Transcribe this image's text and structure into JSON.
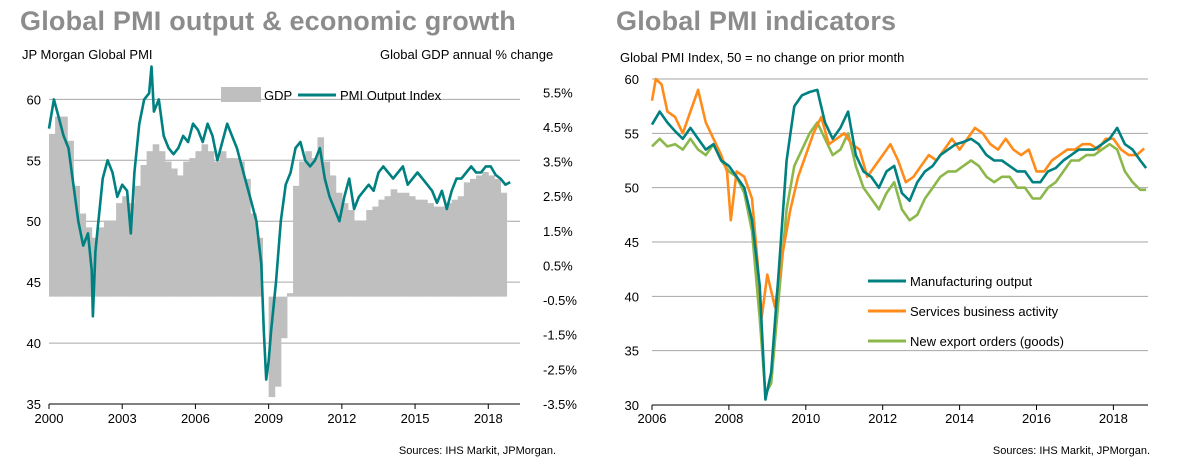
{
  "left_panel": {
    "title": "Global PMI output & economic growth",
    "left_axis_label": "JP Morgan Global PMI",
    "right_axis_label": "Global GDP annual % change",
    "source": "Sources: IHS Markit, JPMorgan."
  },
  "right_panel": {
    "title": "Global PMI indicators",
    "subtitle": "Global PMI Index, 50 = no change on prior month",
    "source": "Sources: IHS Markit, JPMorgan."
  },
  "chart_data": [
    {
      "type": "bar+line",
      "title": "Global PMI output & economic growth",
      "ylabel": "JP Morgan Global PMI",
      "y2label": "Global GDP annual % change",
      "ylim": [
        35,
        62
      ],
      "y2lim": [
        -3.5,
        6.0
      ],
      "yticks": [
        35,
        40,
        45,
        50,
        55,
        60
      ],
      "y2ticks": [
        -3.5,
        -2.5,
        -1.5,
        -0.5,
        0.5,
        1.5,
        2.5,
        3.5,
        4.5,
        5.5
      ],
      "y2tick_labels": [
        "-3.5%",
        "-2.5%",
        "-1.5%",
        "-0.5%",
        "0.5%",
        "1.5%",
        "2.5%",
        "3.5%",
        "4.5%",
        "5.5%"
      ],
      "xlim": [
        2000,
        2019.3
      ],
      "xticks": [
        2000,
        2003,
        2006,
        2009,
        2012,
        2015,
        2018
      ],
      "grid": "horizontal",
      "legend": "top-right",
      "series": [
        {
          "name": "GDP",
          "kind": "bar",
          "color": "#bfbfbf",
          "axis": "right",
          "x": [
            2000.0,
            2000.25,
            2000.5,
            2000.75,
            2001.0,
            2001.25,
            2001.5,
            2001.75,
            2002.0,
            2002.25,
            2002.5,
            2002.75,
            2003.0,
            2003.25,
            2003.5,
            2003.75,
            2004.0,
            2004.25,
            2004.5,
            2004.75,
            2005.0,
            2005.25,
            2005.5,
            2005.75,
            2006.0,
            2006.25,
            2006.5,
            2006.75,
            2007.0,
            2007.25,
            2007.5,
            2007.75,
            2008.0,
            2008.25,
            2008.5,
            2008.75,
            2009.0,
            2009.25,
            2009.5,
            2009.75,
            2010.0,
            2010.25,
            2010.5,
            2010.75,
            2011.0,
            2011.25,
            2011.5,
            2011.75,
            2012.0,
            2012.25,
            2012.5,
            2012.75,
            2013.0,
            2013.25,
            2013.5,
            2013.75,
            2014.0,
            2014.25,
            2014.5,
            2014.75,
            2015.0,
            2015.25,
            2015.5,
            2015.75,
            2016.0,
            2016.25,
            2016.5,
            2016.75,
            2017.0,
            2017.25,
            2017.5,
            2017.75,
            2018.0,
            2018.25,
            2018.5
          ],
          "values": [
            4.3,
            4.8,
            4.8,
            4.1,
            2.8,
            2.0,
            1.6,
            1.3,
            1.6,
            1.8,
            1.8,
            2.3,
            2.5,
            2.3,
            2.8,
            3.4,
            3.8,
            4.0,
            3.8,
            3.5,
            3.3,
            3.1,
            3.5,
            3.6,
            3.8,
            4.0,
            3.8,
            3.5,
            3.8,
            3.6,
            3.6,
            3.5,
            3.0,
            2.0,
            1.3,
            -0.4,
            -3.3,
            -3.0,
            -1.6,
            -0.3,
            2.8,
            3.5,
            3.8,
            3.6,
            4.2,
            3.5,
            3.1,
            2.6,
            2.3,
            2.1,
            1.8,
            1.8,
            2.1,
            2.2,
            2.4,
            2.5,
            2.7,
            2.6,
            2.6,
            2.5,
            2.4,
            2.4,
            2.3,
            2.2,
            2.2,
            2.3,
            2.4,
            2.5,
            2.9,
            3.0,
            3.1,
            3.2,
            3.1,
            3.0,
            2.6
          ]
        },
        {
          "name": "PMI Output Index",
          "kind": "line",
          "color": "#008080",
          "axis": "left",
          "x": [
            2000.0,
            2000.2,
            2000.4,
            2000.6,
            2000.8,
            2001.0,
            2001.2,
            2001.4,
            2001.6,
            2001.75,
            2001.8,
            2001.9,
            2002.0,
            2002.2,
            2002.4,
            2002.6,
            2002.8,
            2003.0,
            2003.2,
            2003.35,
            2003.5,
            2003.7,
            2003.9,
            2004.1,
            2004.2,
            2004.3,
            2004.5,
            2004.7,
            2004.9,
            2005.1,
            2005.3,
            2005.5,
            2005.7,
            2005.9,
            2006.1,
            2006.3,
            2006.5,
            2006.7,
            2006.9,
            2007.1,
            2007.3,
            2007.5,
            2007.7,
            2007.9,
            2008.1,
            2008.3,
            2008.5,
            2008.7,
            2008.8,
            2008.9,
            2009.0,
            2009.1,
            2009.3,
            2009.5,
            2009.7,
            2009.9,
            2010.1,
            2010.3,
            2010.5,
            2010.7,
            2010.9,
            2011.1,
            2011.3,
            2011.5,
            2011.7,
            2011.9,
            2012.1,
            2012.3,
            2012.5,
            2012.7,
            2012.9,
            2013.1,
            2013.3,
            2013.5,
            2013.7,
            2013.9,
            2014.1,
            2014.3,
            2014.5,
            2014.7,
            2014.9,
            2015.1,
            2015.3,
            2015.5,
            2015.7,
            2015.9,
            2016.1,
            2016.3,
            2016.5,
            2016.7,
            2016.9,
            2017.1,
            2017.3,
            2017.5,
            2017.7,
            2017.9,
            2018.1,
            2018.3,
            2018.5,
            2018.7,
            2018.9
          ],
          "values": [
            57.6,
            60.0,
            58.5,
            57.0,
            56.0,
            53.0,
            50.0,
            48.0,
            49.0,
            46.0,
            42.2,
            47.5,
            49.5,
            53.5,
            55.0,
            54.0,
            52.0,
            53.0,
            52.5,
            49.0,
            54.0,
            58.0,
            60.0,
            60.5,
            62.7,
            59.0,
            60.0,
            57.0,
            56.0,
            55.5,
            56.0,
            57.0,
            56.5,
            58.0,
            57.5,
            56.5,
            58.0,
            57.0,
            55.0,
            56.5,
            58.0,
            57.0,
            56.0,
            54.5,
            53.0,
            51.5,
            50.0,
            46.5,
            41.0,
            37.0,
            38.5,
            41.0,
            45.0,
            50.0,
            53.0,
            54.0,
            56.0,
            56.5,
            55.0,
            54.5,
            55.0,
            56.0,
            53.5,
            52.0,
            51.0,
            50.0,
            52.0,
            53.5,
            51.0,
            52.0,
            52.5,
            53.0,
            52.5,
            54.0,
            54.5,
            54.0,
            53.5,
            54.0,
            54.5,
            53.0,
            53.5,
            54.0,
            53.5,
            53.0,
            52.5,
            51.5,
            52.5,
            51.0,
            52.5,
            53.5,
            53.5,
            54.0,
            54.5,
            54.0,
            54.0,
            54.5,
            54.5,
            53.8,
            53.5,
            53.0,
            53.2
          ]
        }
      ]
    },
    {
      "type": "line",
      "title": "Global PMI indicators",
      "ylabel": "Global PMI Index, 50 = no change on prior month",
      "ylim": [
        30,
        60
      ],
      "yticks": [
        30,
        35,
        40,
        45,
        50,
        55,
        60
      ],
      "xlim": [
        2006,
        2018.9
      ],
      "xticks": [
        2006,
        2008,
        2010,
        2012,
        2014,
        2016,
        2018
      ],
      "grid": "horizontal",
      "legend": "bottom-right",
      "series": [
        {
          "name": "Manufacturing output",
          "color": "#008080",
          "x": [
            2006.0,
            2006.2,
            2006.4,
            2006.6,
            2006.8,
            2007.0,
            2007.2,
            2007.4,
            2007.6,
            2007.8,
            2008.0,
            2008.2,
            2008.4,
            2008.6,
            2008.8,
            2008.95,
            2009.1,
            2009.3,
            2009.5,
            2009.7,
            2009.9,
            2010.1,
            2010.3,
            2010.5,
            2010.7,
            2010.9,
            2011.1,
            2011.3,
            2011.5,
            2011.7,
            2011.9,
            2012.1,
            2012.3,
            2012.5,
            2012.7,
            2012.9,
            2013.1,
            2013.3,
            2013.5,
            2013.7,
            2013.9,
            2014.1,
            2014.3,
            2014.5,
            2014.7,
            2014.9,
            2015.1,
            2015.3,
            2015.5,
            2015.7,
            2015.9,
            2016.1,
            2016.3,
            2016.5,
            2016.7,
            2016.9,
            2017.1,
            2017.3,
            2017.5,
            2017.7,
            2017.9,
            2018.1,
            2018.3,
            2018.5,
            2018.7,
            2018.85
          ],
          "values": [
            55.8,
            57.0,
            56.0,
            55.2,
            54.5,
            55.5,
            54.5,
            53.5,
            54.0,
            52.5,
            52.0,
            51.0,
            50.0,
            47.0,
            41.0,
            30.5,
            33.0,
            42.5,
            52.5,
            57.5,
            58.5,
            58.8,
            59.0,
            56.0,
            54.5,
            55.5,
            57.0,
            53.0,
            51.5,
            51.0,
            50.0,
            51.5,
            52.0,
            49.5,
            48.8,
            50.5,
            51.5,
            52.0,
            53.0,
            53.5,
            54.0,
            54.2,
            54.5,
            54.0,
            53.0,
            52.5,
            52.5,
            52.0,
            51.5,
            51.5,
            50.5,
            50.5,
            51.5,
            51.8,
            52.5,
            53.0,
            53.5,
            53.5,
            53.5,
            54.0,
            54.5,
            55.5,
            54.0,
            53.5,
            52.5,
            51.8
          ]
        },
        {
          "name": "Services business activity",
          "color": "#ff8c1a",
          "x": [
            2006.0,
            2006.1,
            2006.25,
            2006.4,
            2006.6,
            2006.8,
            2007.0,
            2007.2,
            2007.4,
            2007.6,
            2007.8,
            2007.95,
            2008.05,
            2008.2,
            2008.4,
            2008.6,
            2008.75,
            2008.85,
            2009.0,
            2009.2,
            2009.4,
            2009.6,
            2009.8,
            2010.0,
            2010.2,
            2010.4,
            2010.6,
            2010.8,
            2011.0,
            2011.2,
            2011.4,
            2011.6,
            2011.8,
            2012.0,
            2012.2,
            2012.4,
            2012.6,
            2012.8,
            2013.0,
            2013.2,
            2013.4,
            2013.6,
            2013.8,
            2014.0,
            2014.2,
            2014.4,
            2014.6,
            2014.8,
            2015.0,
            2015.2,
            2015.4,
            2015.6,
            2015.8,
            2016.0,
            2016.2,
            2016.4,
            2016.6,
            2016.8,
            2017.0,
            2017.2,
            2017.4,
            2017.6,
            2017.8,
            2018.0,
            2018.2,
            2018.4,
            2018.6,
            2018.8
          ],
          "values": [
            58.0,
            60.0,
            59.5,
            57.0,
            56.5,
            55.0,
            57.0,
            59.0,
            56.0,
            54.5,
            53.0,
            51.5,
            47.0,
            51.5,
            51.0,
            49.0,
            43.0,
            38.0,
            42.0,
            39.0,
            44.0,
            48.0,
            51.0,
            53.0,
            55.0,
            56.5,
            54.0,
            54.5,
            55.0,
            54.0,
            53.5,
            51.0,
            52.0,
            53.0,
            54.0,
            52.5,
            50.5,
            51.0,
            52.0,
            53.0,
            52.5,
            53.5,
            54.5,
            53.5,
            54.5,
            55.5,
            55.0,
            54.0,
            53.5,
            54.5,
            53.5,
            53.0,
            53.5,
            51.5,
            51.5,
            52.5,
            53.0,
            53.5,
            53.5,
            54.0,
            54.0,
            53.5,
            54.5,
            54.5,
            53.5,
            53.0,
            53.0,
            53.6
          ]
        },
        {
          "name": "New export orders (goods)",
          "color": "#8cb84b",
          "x": [
            2006.0,
            2006.2,
            2006.4,
            2006.6,
            2006.8,
            2007.0,
            2007.2,
            2007.4,
            2007.6,
            2007.8,
            2008.0,
            2008.2,
            2008.4,
            2008.6,
            2008.8,
            2008.95,
            2009.1,
            2009.3,
            2009.5,
            2009.7,
            2009.9,
            2010.1,
            2010.3,
            2010.5,
            2010.7,
            2010.9,
            2011.1,
            2011.3,
            2011.5,
            2011.7,
            2011.9,
            2012.1,
            2012.3,
            2012.5,
            2012.7,
            2012.9,
            2013.1,
            2013.3,
            2013.5,
            2013.7,
            2013.9,
            2014.1,
            2014.3,
            2014.5,
            2014.7,
            2014.9,
            2015.1,
            2015.3,
            2015.5,
            2015.7,
            2015.9,
            2016.1,
            2016.3,
            2016.5,
            2016.7,
            2016.9,
            2017.1,
            2017.3,
            2017.5,
            2017.7,
            2017.9,
            2018.1,
            2018.3,
            2018.5,
            2018.7,
            2018.85
          ],
          "values": [
            53.8,
            54.5,
            53.8,
            54.0,
            53.5,
            54.5,
            53.5,
            53.0,
            54.0,
            52.5,
            51.5,
            51.0,
            49.5,
            46.0,
            38.0,
            31.0,
            32.0,
            40.0,
            48.0,
            52.0,
            53.5,
            55.0,
            56.0,
            54.5,
            53.0,
            53.5,
            55.0,
            52.0,
            50.0,
            49.0,
            48.0,
            49.5,
            50.5,
            48.0,
            47.0,
            47.5,
            49.0,
            50.0,
            51.0,
            51.5,
            51.5,
            52.0,
            52.5,
            52.0,
            51.0,
            50.5,
            51.0,
            51.0,
            50.0,
            50.0,
            49.0,
            49.0,
            50.0,
            50.5,
            51.5,
            52.5,
            52.5,
            53.0,
            53.0,
            53.5,
            54.0,
            53.5,
            51.5,
            50.5,
            49.8,
            49.8
          ]
        }
      ]
    }
  ]
}
